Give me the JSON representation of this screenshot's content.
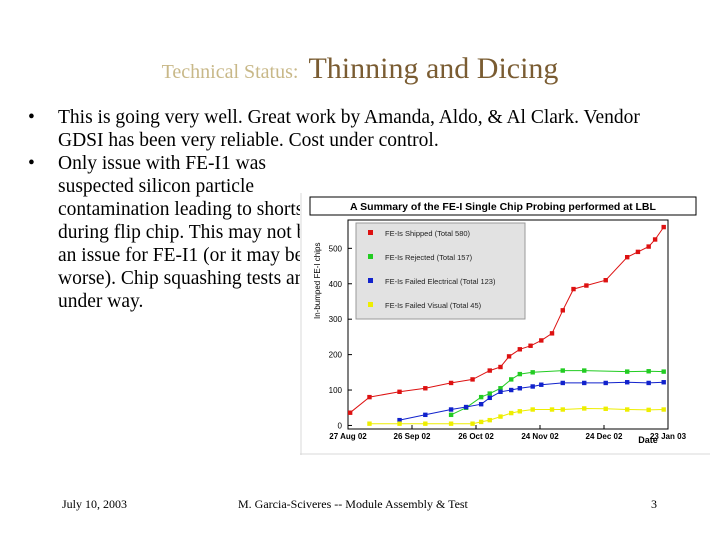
{
  "title": {
    "prefix": "Technical Status:",
    "main": "Thinning and Dicing"
  },
  "bullets": [
    "This is going very well. Great work by Amanda, Aldo, & Al Clark. Vendor GDSI has been very reliable. Cost under control.",
    "Only issue with FE-I1 was suspected silicon particle contamination leading to shorts during flip chip. This may not be an issue for FE-I1 (or it may be worse). Chip squashing tests are under way."
  ],
  "footer": {
    "date": "July 10, 2003",
    "author": "M. Garcia-Sciveres -- Module Assembly & Test",
    "page": "3"
  },
  "chart_data": {
    "type": "line",
    "title": "A Summary of the FE-I Single Chip Probing performed at LBL",
    "ylabel": "In-bumped FE-I chips",
    "xlabel": "Date",
    "x_ticks": [
      "27 Aug 02",
      "26 Sep 02",
      "26 Oct 02",
      "24 Nov 02",
      "24 Dec 02",
      "23 Jan 03"
    ],
    "y_ticks": [
      0,
      100,
      200,
      300,
      400,
      500
    ],
    "xlim": [
      0,
      149
    ],
    "ylim": [
      -10,
      580
    ],
    "legend_position": "top-left",
    "colors": {
      "shipped": "#dd1111",
      "rejected": "#22cc22",
      "electrical": "#1122cc",
      "visual": "#eeee00"
    },
    "series": [
      {
        "name": "FE-Is Shipped (Total 580)",
        "color_key": "shipped",
        "x": [
          1,
          10,
          24,
          36,
          48,
          58,
          66,
          71,
          75,
          80,
          85,
          90,
          95,
          100,
          105,
          111,
          120,
          130,
          135,
          140,
          143,
          147
        ],
        "y": [
          36,
          80,
          95,
          105,
          120,
          130,
          155,
          165,
          195,
          215,
          225,
          240,
          260,
          325,
          385,
          395,
          410,
          475,
          490,
          505,
          525,
          560
        ]
      },
      {
        "name": "FE-Is Rejected (Total 157)",
        "color_key": "rejected",
        "x": [
          48,
          55,
          62,
          66,
          71,
          76,
          80,
          86,
          100,
          110,
          130,
          140,
          147
        ],
        "y": [
          30,
          50,
          80,
          90,
          105,
          130,
          145,
          150,
          155,
          155,
          152,
          153,
          152
        ]
      },
      {
        "name": "FE-Is Failed Electrical (Total 123)",
        "color_key": "electrical",
        "x": [
          24,
          36,
          48,
          55,
          62,
          66,
          71,
          76,
          80,
          86,
          90,
          100,
          110,
          120,
          130,
          140,
          147
        ],
        "y": [
          15,
          30,
          45,
          52,
          60,
          78,
          95,
          100,
          105,
          110,
          115,
          120,
          120,
          120,
          122,
          120,
          122
        ]
      },
      {
        "name": "FE-Is Failed Visual (Total 45)",
        "color_key": "visual",
        "x": [
          10,
          24,
          36,
          48,
          58,
          62,
          66,
          71,
          76,
          80,
          86,
          95,
          100,
          110,
          120,
          130,
          140,
          147
        ],
        "y": [
          5,
          5,
          5,
          5,
          5,
          10,
          15,
          25,
          35,
          40,
          45,
          45,
          45,
          48,
          47,
          45,
          44,
          45
        ]
      }
    ]
  }
}
